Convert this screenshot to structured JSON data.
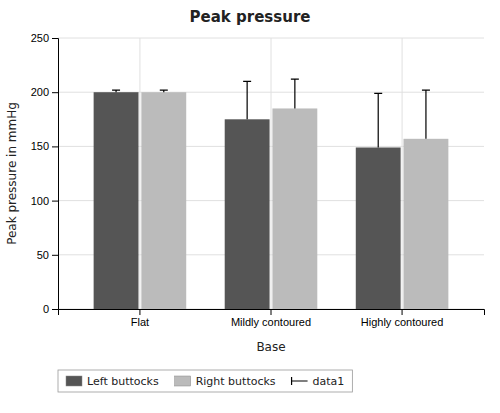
{
  "chart_data": {
    "type": "bar",
    "title": "Peak pressure",
    "x_label": "Base",
    "y_label": "Peak pressure in mmHg",
    "categories": [
      "Flat",
      "Mildly contoured",
      "Highly contoured"
    ],
    "series": [
      {
        "name": "Left buttocks",
        "color": "#555555",
        "values": [
          200,
          175,
          149
        ],
        "errors": [
          2,
          35,
          50
        ]
      },
      {
        "name": "Right buttocks",
        "color": "#bbbbbb",
        "values": [
          200,
          185,
          157
        ],
        "errors": [
          2,
          27,
          45
        ]
      }
    ],
    "error_bar_name": "data1",
    "ylim": [
      0,
      250
    ],
    "yticks": [
      0,
      50,
      100,
      150,
      200,
      250
    ],
    "grid": true,
    "legend": "lower left"
  }
}
